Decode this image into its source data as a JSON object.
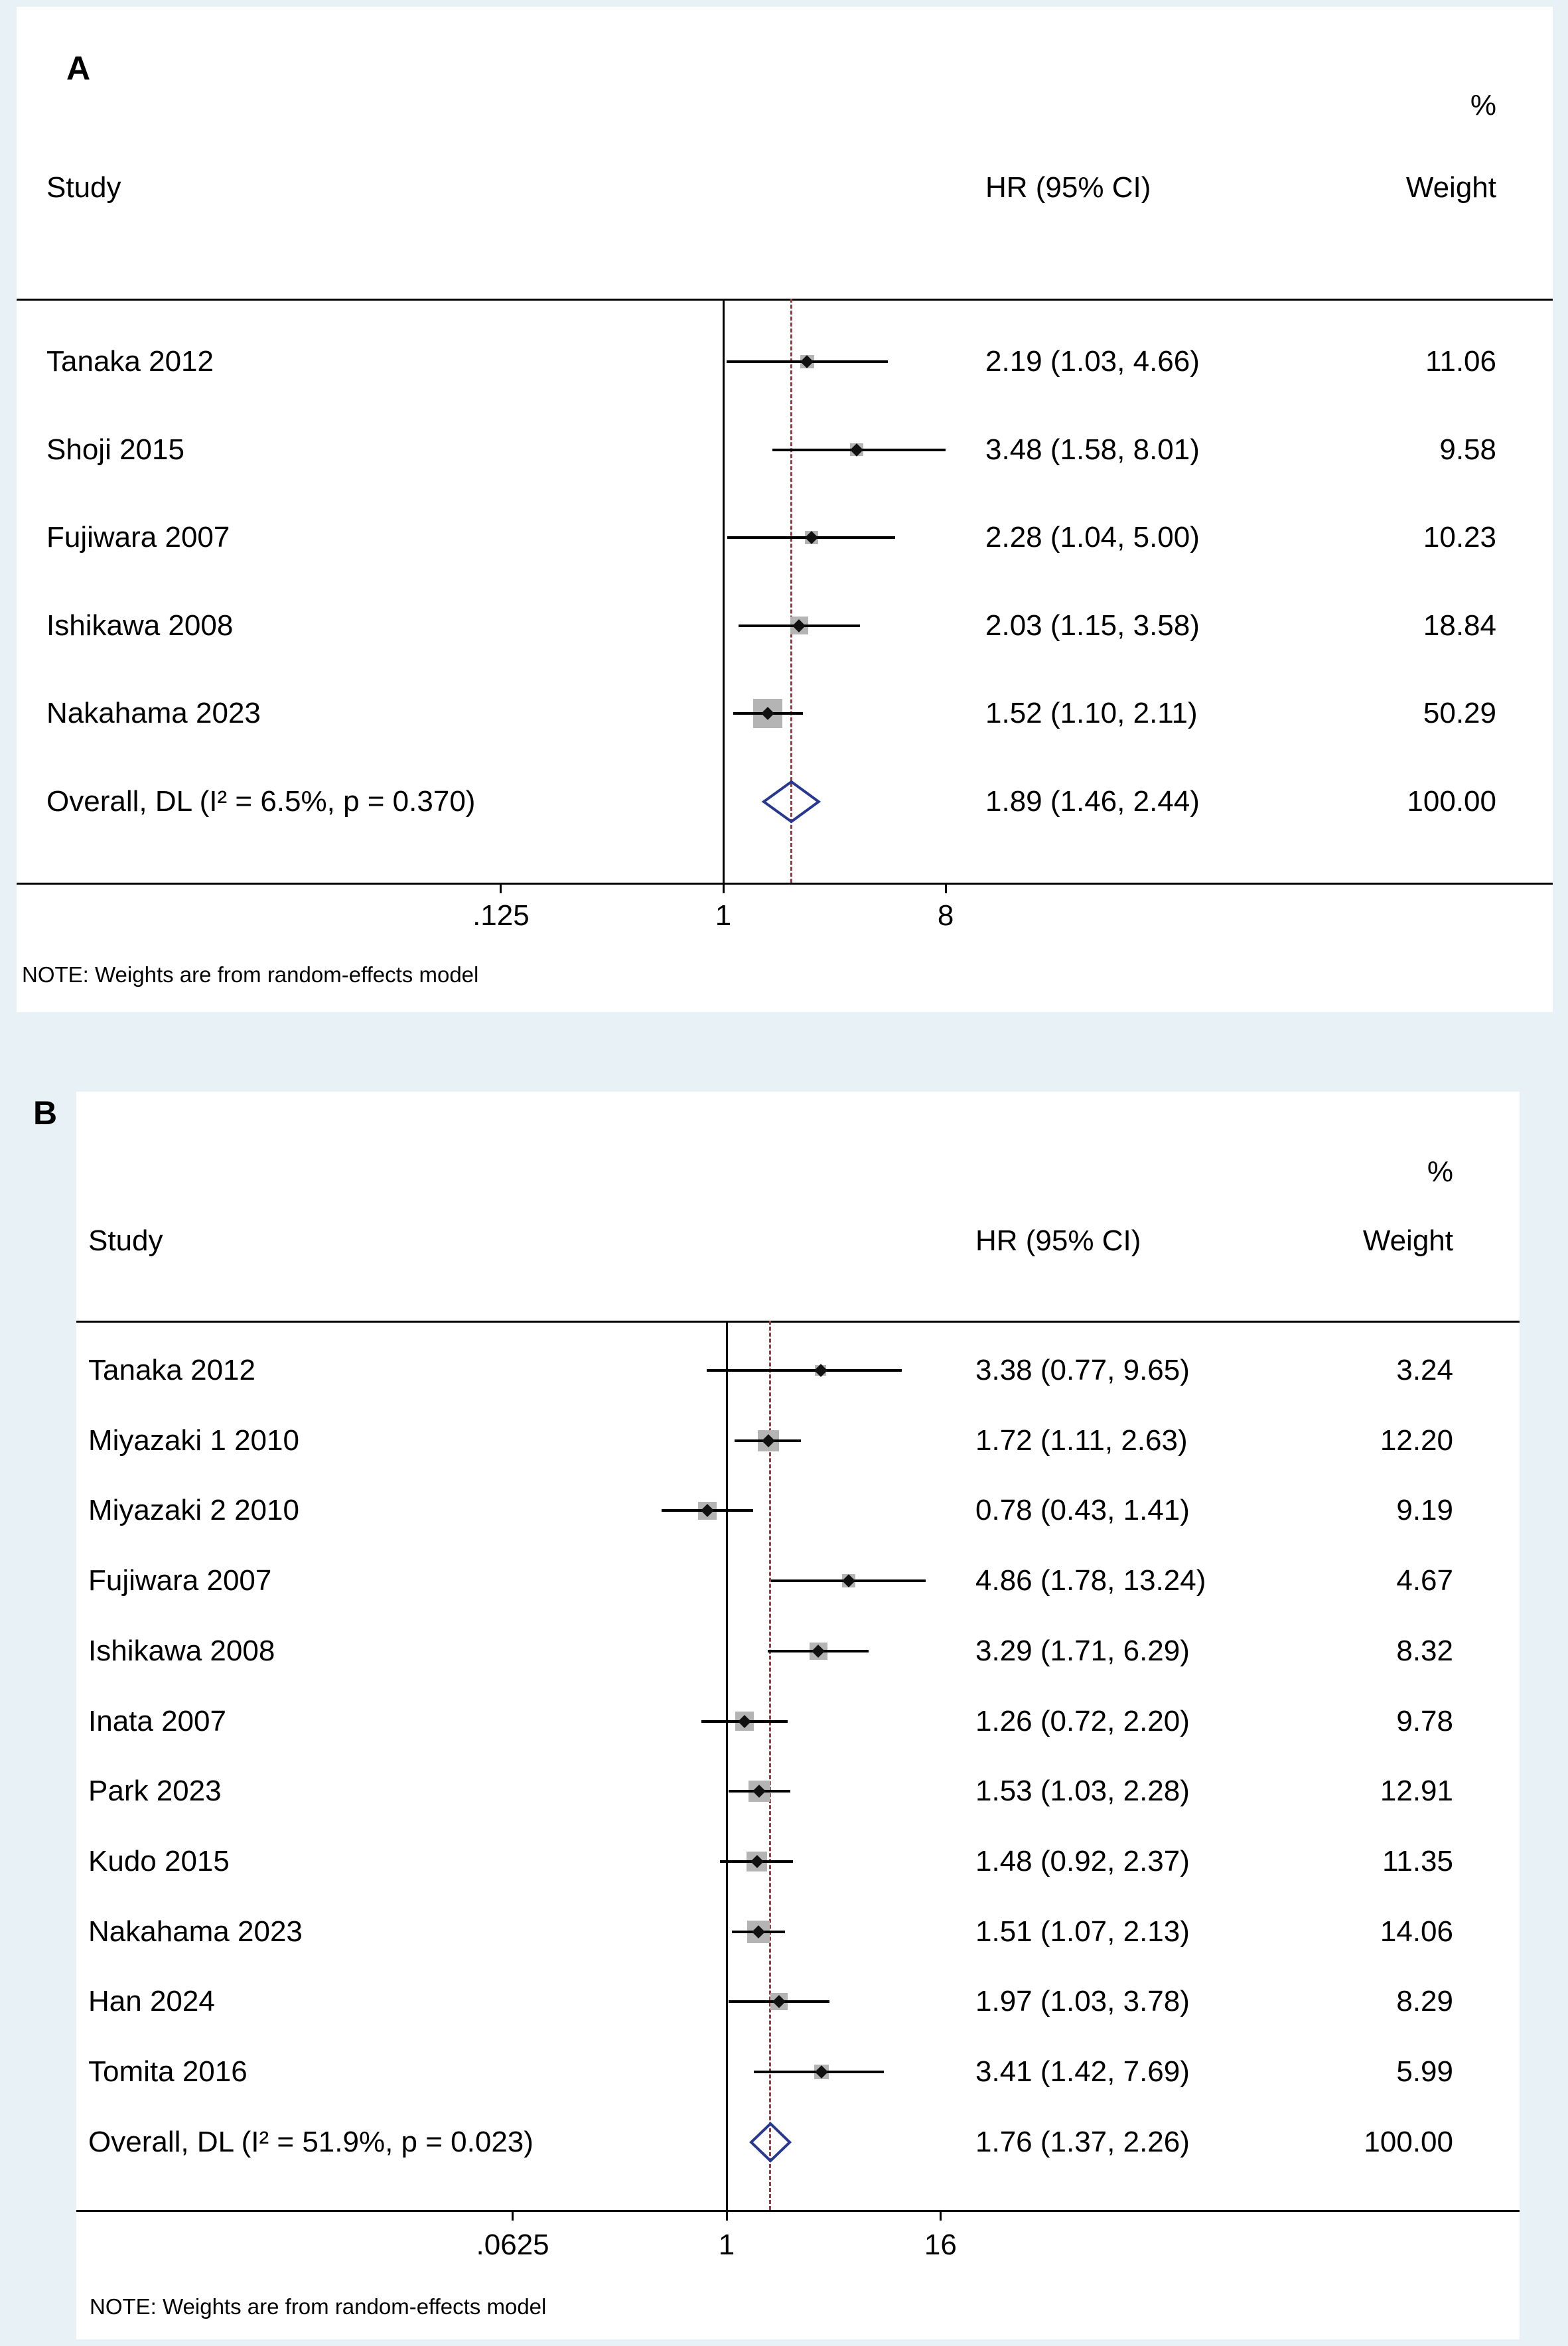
{
  "colors": {
    "page_background": "#e7f1f6",
    "panel_background": "#ffffff",
    "text": "#000000",
    "axis_rule": "#000000",
    "ci_line": "#000000",
    "weight_box": "#b4b4b4",
    "point_marker": "#111111",
    "overall_diamond": "#283891",
    "overall_dashed_line": "#9a3b40"
  },
  "chart_data": [
    {
      "type": "forest",
      "panel": "A",
      "columns": {
        "study": "Study",
        "hr": "HR (95% CI)",
        "weight": "Weight",
        "percent": "%"
      },
      "x_scale": "log2",
      "x_ticks": [
        0.125,
        1,
        8
      ],
      "x_tick_labels": [
        ".125",
        "1",
        "8"
      ],
      "null_value": 1,
      "overall_line_value": 1.89,
      "studies": [
        {
          "label": "Tanaka 2012",
          "hr": 2.19,
          "ci_low": 1.03,
          "ci_high": 4.66,
          "hr_text": "2.19 (1.03, 4.66)",
          "weight": 11.06,
          "weight_text": "11.06"
        },
        {
          "label": "Shoji 2015",
          "hr": 3.48,
          "ci_low": 1.58,
          "ci_high": 8.01,
          "hr_text": "3.48 (1.58, 8.01)",
          "weight": 9.58,
          "weight_text": "9.58"
        },
        {
          "label": "Fujiwara 2007",
          "hr": 2.28,
          "ci_low": 1.04,
          "ci_high": 5.0,
          "hr_text": "2.28 (1.04, 5.00)",
          "weight": 10.23,
          "weight_text": "10.23"
        },
        {
          "label": "Ishikawa 2008",
          "hr": 2.03,
          "ci_low": 1.15,
          "ci_high": 3.58,
          "hr_text": "2.03 (1.15, 3.58)",
          "weight": 18.84,
          "weight_text": "18.84"
        },
        {
          "label": "Nakahama 2023",
          "hr": 1.52,
          "ci_low": 1.1,
          "ci_high": 2.11,
          "hr_text": "1.52 (1.10, 2.11)",
          "weight": 50.29,
          "weight_text": "50.29"
        }
      ],
      "overall": {
        "label": "Overall, DL (I² = 6.5%, p = 0.370)",
        "hr": 1.89,
        "ci_low": 1.46,
        "ci_high": 2.44,
        "hr_text": "1.89 (1.46, 2.44)",
        "weight_text": "100.00"
      },
      "note": "NOTE: Weights are from random-effects model"
    },
    {
      "type": "forest",
      "panel": "B",
      "columns": {
        "study": "Study",
        "hr": "HR (95% CI)",
        "weight": "Weight",
        "percent": "%"
      },
      "x_scale": "log2",
      "x_ticks": [
        0.0625,
        1,
        16
      ],
      "x_tick_labels": [
        ".0625",
        "1",
        "16"
      ],
      "null_value": 1,
      "overall_line_value": 1.76,
      "studies": [
        {
          "label": "Tanaka 2012",
          "hr": 3.38,
          "ci_low": 0.77,
          "ci_high": 9.65,
          "hr_text": "3.38 (0.77, 9.65)",
          "weight": 3.24,
          "weight_text": "3.24"
        },
        {
          "label": "Miyazaki 1 2010",
          "hr": 1.72,
          "ci_low": 1.11,
          "ci_high": 2.63,
          "hr_text": "1.72 (1.11, 2.63)",
          "weight": 12.2,
          "weight_text": "12.20"
        },
        {
          "label": "Miyazaki 2 2010",
          "hr": 0.78,
          "ci_low": 0.43,
          "ci_high": 1.41,
          "hr_text": "0.78 (0.43, 1.41)",
          "weight": 9.19,
          "weight_text": "9.19"
        },
        {
          "label": "Fujiwara 2007",
          "hr": 4.86,
          "ci_low": 1.78,
          "ci_high": 13.24,
          "hr_text": "4.86 (1.78, 13.24)",
          "weight": 4.67,
          "weight_text": "4.67"
        },
        {
          "label": "Ishikawa 2008",
          "hr": 3.29,
          "ci_low": 1.71,
          "ci_high": 6.29,
          "hr_text": "3.29 (1.71, 6.29)",
          "weight": 8.32,
          "weight_text": "8.32"
        },
        {
          "label": "Inata 2007",
          "hr": 1.26,
          "ci_low": 0.72,
          "ci_high": 2.2,
          "hr_text": "1.26 (0.72, 2.20)",
          "weight": 9.78,
          "weight_text": "9.78"
        },
        {
          "label": "Park 2023",
          "hr": 1.53,
          "ci_low": 1.03,
          "ci_high": 2.28,
          "hr_text": "1.53 (1.03, 2.28)",
          "weight": 12.91,
          "weight_text": "12.91"
        },
        {
          "label": "Kudo 2015",
          "hr": 1.48,
          "ci_low": 0.92,
          "ci_high": 2.37,
          "hr_text": "1.48 (0.92, 2.37)",
          "weight": 11.35,
          "weight_text": "11.35"
        },
        {
          "label": "Nakahama 2023",
          "hr": 1.51,
          "ci_low": 1.07,
          "ci_high": 2.13,
          "hr_text": "1.51 (1.07, 2.13)",
          "weight": 14.06,
          "weight_text": "14.06"
        },
        {
          "label": "Han 2024",
          "hr": 1.97,
          "ci_low": 1.03,
          "ci_high": 3.78,
          "hr_text": "1.97 (1.03, 3.78)",
          "weight": 8.29,
          "weight_text": "8.29"
        },
        {
          "label": "Tomita 2016",
          "hr": 3.41,
          "ci_low": 1.42,
          "ci_high": 7.69,
          "hr_text": "3.41 (1.42, 7.69)",
          "weight": 5.99,
          "weight_text": "5.99"
        }
      ],
      "overall": {
        "label": "Overall, DL (I² = 51.9%, p = 0.023)",
        "hr": 1.76,
        "ci_low": 1.37,
        "ci_high": 2.26,
        "hr_text": "1.76 (1.37, 2.26)",
        "weight_text": "100.00"
      },
      "note": "NOTE: Weights are from random-effects model"
    }
  ]
}
